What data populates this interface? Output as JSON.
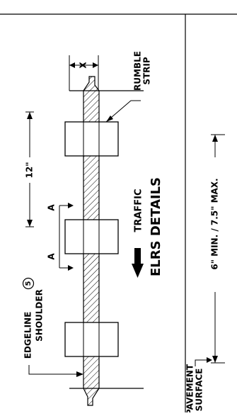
{
  "rumble_strip_label": [
    "RUMBLE",
    "STRIP"
  ],
  "dimension_x_label": "X",
  "spacing_label": "12\"",
  "section_marker_label": "A",
  "traffic_label": "TRAFFIC",
  "title": "ELRS DETAILS",
  "edgeline_label": "EDGELINE",
  "shoulder_label": "SHOULDER",
  "note_number": "5",
  "depth_range_label": "6\" MIN. / 7.5\" MAX.",
  "pavement_surface_label": [
    "PAVEMENT",
    "SURFACE"
  ]
}
